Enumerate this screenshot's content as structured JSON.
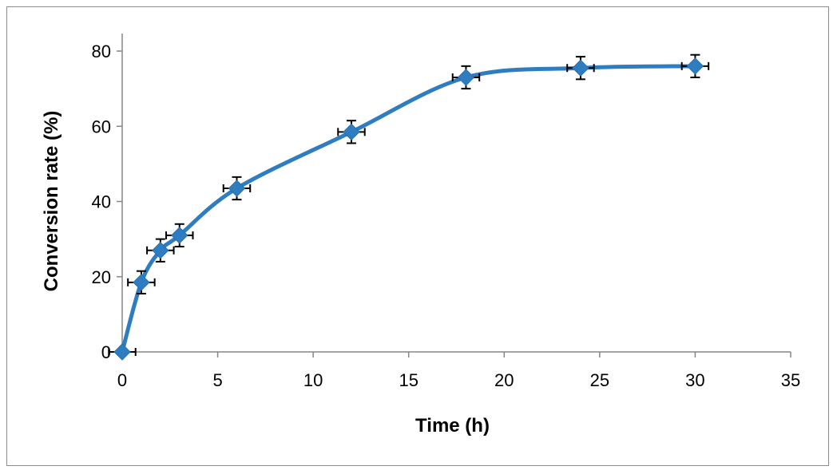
{
  "chart_data": {
    "type": "line",
    "title": "",
    "xlabel": "Time (h)",
    "ylabel": "Conversion rate (%)",
    "xlim": [
      0,
      35
    ],
    "ylim": [
      0,
      80
    ],
    "xticks": [
      0,
      5,
      10,
      15,
      20,
      25,
      30,
      35
    ],
    "yticks": [
      0,
      20,
      40,
      60,
      80
    ],
    "xtick_labels": [
      "0",
      "5",
      "10",
      "15",
      "20",
      "25",
      "30",
      "35"
    ],
    "ytick_labels": [
      "0",
      "20",
      "40",
      "60",
      "80"
    ],
    "grid": false,
    "legend": "none",
    "smooth": true,
    "marker": "diamond",
    "series": [
      {
        "x": [
          0,
          1,
          2,
          3,
          6,
          12,
          18,
          24,
          30
        ],
        "y": [
          0,
          18.5,
          27,
          31,
          43.5,
          58.5,
          73,
          75.5,
          76
        ],
        "x_err": [
          0.7,
          0.7,
          0.7,
          0.7,
          0.7,
          0.7,
          0.7,
          0.7,
          0.7
        ],
        "y_err": [
          0,
          3,
          3,
          3,
          3,
          3,
          3,
          3,
          3
        ],
        "color": "#2e7dc0"
      }
    ]
  }
}
